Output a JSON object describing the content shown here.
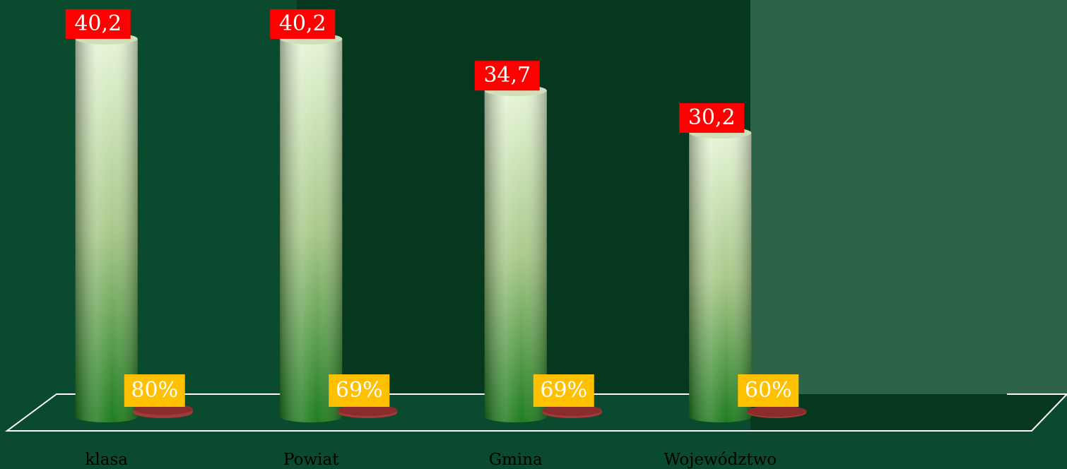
{
  "chart_data": {
    "type": "bar3d",
    "categories": [
      "klasa",
      "Powiat",
      "Gmina",
      "Województwo"
    ],
    "series": [
      {
        "color": "#2e8b2e",
        "values": [
          40.2,
          40.2,
          34.7,
          30.2
        ],
        "value_labels": [
          "40,2",
          "40,2",
          "34,7",
          "30,2"
        ]
      },
      {
        "color": "#a33a3a",
        "axis": "y2",
        "values": [
          80,
          69,
          69,
          60
        ],
        "value_labels": [
          "80%",
          "69%",
          "69%",
          "60%"
        ]
      }
    ],
    "ylim": [
      0,
      42
    ],
    "y2lim": [
      0,
      4200
    ]
  }
}
